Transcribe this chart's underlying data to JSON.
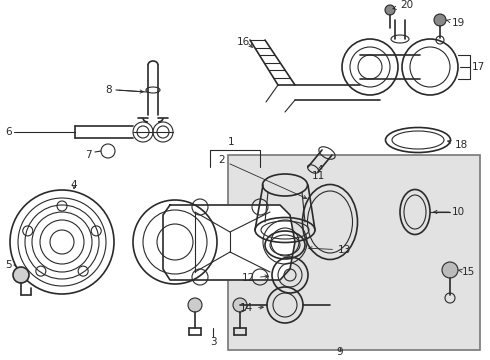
{
  "bg_color": "#ffffff",
  "line_color": "#2a2a2a",
  "box_bg": "#e4e4e4",
  "box_edge": "#888888",
  "figsize": [
    4.9,
    3.6
  ],
  "dpi": 100
}
